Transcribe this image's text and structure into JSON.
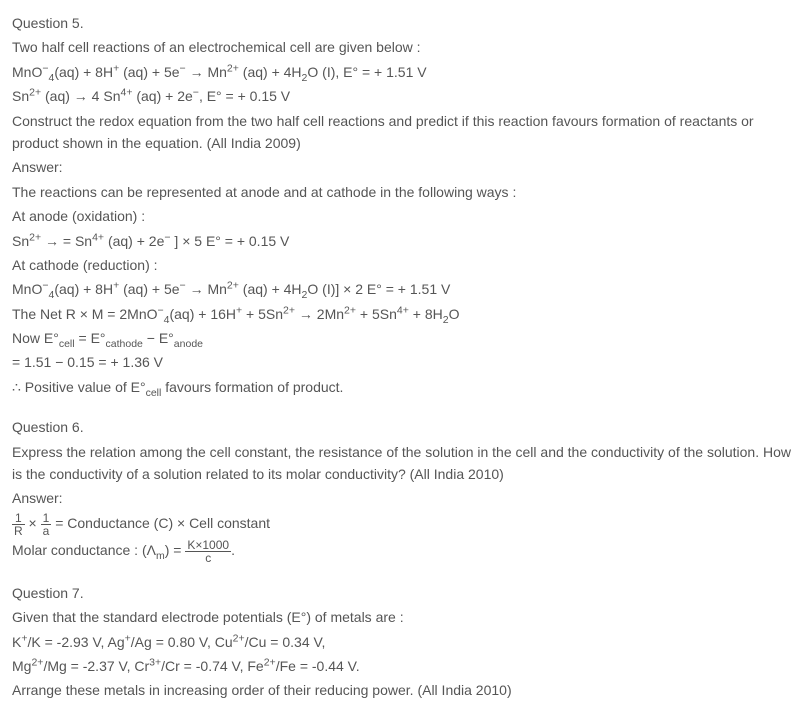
{
  "q5": {
    "heading": "Question 5.",
    "line1": "Two half cell reactions of an electrochemical cell are given below :",
    "line2_pre": "MnO",
    "line2_sub1": "4",
    "line2_mid1": "(aq) + 8H",
    "line2_sup1": "+",
    "line2_mid2": " (aq) + 5e",
    "line2_sup2": "−",
    "line2_mid3": " → Mn",
    "line2_sup3": "2+",
    "line2_mid4": " (aq) + 4H",
    "line2_sub2": "2",
    "line2_mid5": "O (I), E° = + 1.51 V",
    "line3_pre": "Sn",
    "line3_sup1": "2+",
    "line3_mid1": " (aq) → 4 Sn",
    "line3_sup2": "4+",
    "line3_mid2": " (aq) + 2e",
    "line3_sup3": "−",
    "line3_mid3": ", E° = + 0.15 V",
    "line4": "Construct the redox equation from the two half cell reactions and predict if this reaction favours formation of reactants or product shown in the equation. (All India 2009)",
    "ans": "Answer:",
    "a1": "The reactions can be represented at anode and at cathode in the following ways :",
    "a2": "At anode (oxidation) :",
    "a3_pre": "Sn",
    "a3_sup1": "2+",
    "a3_mid1": " → = Sn",
    "a3_sup2": "4+",
    "a3_mid2": " (aq) + 2e",
    "a3_sup3": "−",
    "a3_mid3": " ] × 5 E° = + 0.15 V",
    "a4": "At cathode (reduction) :",
    "a5_pre": "MnO",
    "a5_sub1": "4",
    "a5_mid1": "(aq) + 8H",
    "a5_sup1": "+",
    "a5_mid2": " (aq) + 5e",
    "a5_sup2": "−",
    "a5_mid3": " → Mn",
    "a5_sup3": "2+",
    "a5_mid4": " (aq) + 4H",
    "a5_sub2": "2",
    "a5_mid5": "O (I)] × 2 E° = + 1.51 V",
    "a6_pre": "The Net R × M = 2MnO",
    "a6_sub1": "4",
    "a6_mid1": "(aq) + 16H",
    "a6_sup1": "+",
    "a6_mid2": " + 5Sn",
    "a6_sup2": "2+",
    "a6_mid3": " → 2Mn",
    "a6_sup3": "2+",
    "a6_mid4": " + 5Sn",
    "a6_sup4": "4+",
    "a6_mid5": " + 8H",
    "a6_sub2": "2",
    "a6_mid6": "O",
    "a7_pre": "Now E°",
    "a7_sub1": "cell",
    "a7_mid1": " = E°",
    "a7_sub2": "cathode",
    "a7_mid2": " − E°",
    "a7_sub3": "anode",
    "a8": "= 1.51 − 0.15 = + 1.36 V",
    "a9_pre": "∴ Positive value of E°",
    "a9_sub": "cell",
    "a9_post": " favours formation of product."
  },
  "q6": {
    "heading": "Question 6.",
    "line1": "Express the relation among the cell constant, the resistance of the solution in the cell and the conductivity of the solution. How is the conductivity of a solution related to its molar conductivity? (All India 2010)",
    "ans": "Answer:",
    "f1_num": "1",
    "f1_den": "R",
    "f1_times": " × ",
    "f2_num": "1",
    "f2_den": "a",
    "f1_post": " = Conductance (C) × Cell constant",
    "m_pre": "Molar conductance : (Λ",
    "m_sub": "m",
    "m_mid": ") = ",
    "m_num": "K×1000",
    "m_den": "c",
    "m_post": "."
  },
  "q7": {
    "heading": "Question 7.",
    "line1": "Given that the standard electrode potentials (E°) of metals are :",
    "l2_a": "K",
    "l2_b": "+",
    "l2_c": "/K = -2.93 V, Ag",
    "l2_d": "+",
    "l2_e": "/Ag = 0.80 V, Cu",
    "l2_f": "2+",
    "l2_g": "/Cu = 0.34 V,",
    "l3_a": "Mg",
    "l3_b": "2+",
    "l3_c": "/Mg = -2.37 V, Cr",
    "l3_d": "3+",
    "l3_e": "/Cr = -0.74 V, Fe",
    "l3_f": "2+",
    "l3_g": "/Fe = -0.44 V.",
    "line4": "Arrange these metals in increasing order of their reducing power. (All India 2010)"
  }
}
